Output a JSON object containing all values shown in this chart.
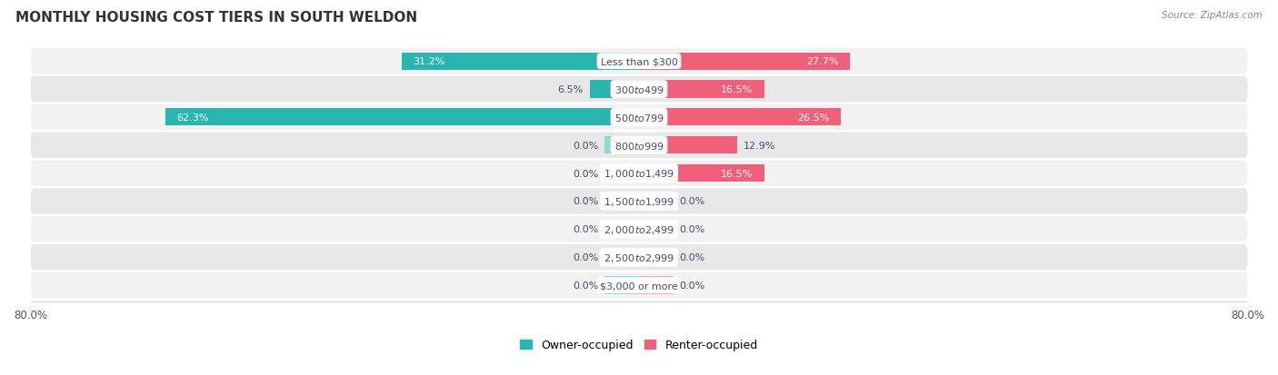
{
  "title": "MONTHLY HOUSING COST TIERS IN SOUTH WELDON",
  "source": "Source: ZipAtlas.com",
  "categories": [
    "Less than $300",
    "$300 to $499",
    "$500 to $799",
    "$800 to $999",
    "$1,000 to $1,499",
    "$1,500 to $1,999",
    "$2,000 to $2,499",
    "$2,500 to $2,999",
    "$3,000 or more"
  ],
  "owner_values": [
    31.2,
    6.5,
    62.3,
    0.0,
    0.0,
    0.0,
    0.0,
    0.0,
    0.0
  ],
  "renter_values": [
    27.7,
    16.5,
    26.5,
    12.9,
    16.5,
    0.0,
    0.0,
    0.0,
    0.0
  ],
  "owner_color_full": "#2BB5B0",
  "owner_color_stub": "#8ED8D5",
  "renter_color_full": "#F0607A",
  "renter_color_stub": "#F5A8BC",
  "row_bg_colors": [
    "#F2F2F2",
    "#E8E8E8"
  ],
  "label_color_white": "#FFFFFF",
  "label_color_dark": "#4A4A6A",
  "max_value": 80.0,
  "stub_size": 4.5,
  "figsize": [
    14.06,
    4.14
  ],
  "dpi": 100
}
